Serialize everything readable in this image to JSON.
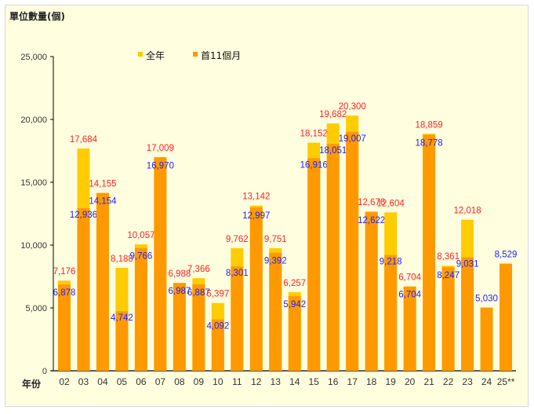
{
  "chart_data": {
    "type": "bar",
    "title": "單位數量(個)",
    "xlabel": "年份",
    "ylabel": "",
    "ylim": [
      0,
      25000
    ],
    "yticks": [
      "0",
      "5,000",
      "10,000",
      "15,000",
      "20,000",
      "25,000"
    ],
    "ytick_values": [
      0,
      5000,
      10000,
      15000,
      20000,
      25000
    ],
    "grid": false,
    "legend_placement": "top-center",
    "categories": [
      "02",
      "03",
      "04",
      "05",
      "06",
      "07",
      "08",
      "09",
      "10",
      "11",
      "12",
      "13",
      "14",
      "15",
      "16",
      "17",
      "18",
      "19",
      "20",
      "21",
      "22",
      "23",
      "24",
      "25**"
    ],
    "series": [
      {
        "name": "全年",
        "color": "#FFCC00",
        "label_color": "#FF2020",
        "values": [
          7176,
          17684,
          14155,
          8188,
          10057,
          17009,
          6988,
          7366,
          5397,
          9762,
          13142,
          9751,
          6257,
          18152,
          19682,
          20300,
          12676,
          12604,
          6704,
          18859,
          8361,
          12018,
          null,
          null
        ],
        "labels": [
          "7,176",
          "17,684",
          "14,155",
          "8,188",
          "10,057",
          "17,009",
          "6,988",
          "7,366",
          "5,397",
          "9,762",
          "13,142",
          "9,751",
          "6,257",
          "18,152",
          "19,682",
          "20,300",
          "12,676",
          "12,604",
          "6,704",
          "18,859",
          "8,361",
          "12,018",
          "",
          ""
        ]
      },
      {
        "name": "首11個月",
        "color": "#FF9900",
        "label_color": "#2020FF",
        "values": [
          6878,
          12936,
          14154,
          4742,
          9766,
          16970,
          6987,
          6887,
          4092,
          8301,
          12997,
          9392,
          5942,
          16916,
          18051,
          19007,
          12622,
          9218,
          6704,
          18778,
          8247,
          9031,
          5030,
          8529
        ],
        "labels": [
          "6,878",
          "12,936",
          "14,154",
          "4,742",
          "9,766",
          "16,970",
          "6,987",
          "6,887",
          "4,092",
          "8,301",
          "12,997",
          "9,392",
          "5,942",
          "16,916",
          "18,051",
          "19,007",
          "12,622",
          "9,218",
          "6,704",
          "18,778",
          "8,247",
          "9,031",
          "5,030",
          "8,529"
        ]
      }
    ]
  }
}
